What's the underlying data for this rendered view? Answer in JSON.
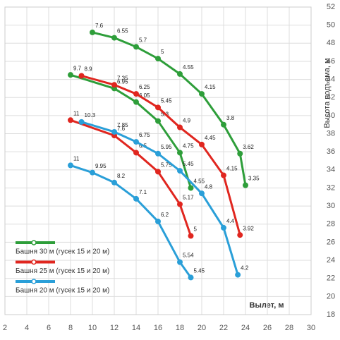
{
  "chart_data": {
    "type": "line",
    "x_label": "Вылет, м",
    "y_label": "Высота подъема, м",
    "xlim": [
      2,
      30
    ],
    "xticks": [
      2,
      4,
      6,
      8,
      10,
      12,
      14,
      16,
      18,
      20,
      22,
      24,
      26,
      28,
      30
    ],
    "ylim": [
      18,
      52
    ],
    "yticks": [
      18,
      20,
      22,
      24,
      26,
      28,
      30,
      32,
      34,
      36,
      38,
      40,
      42,
      44,
      46,
      48,
      50,
      52
    ],
    "grid": true,
    "legend": "lower left",
    "series": [
      {
        "name": "Башня 30 м (гусек 15 и 20 м)",
        "color": "#2e9e3a",
        "curves": [
          {
            "x": [
              10,
              12,
              14,
              16,
              18,
              20,
              22,
              23.5,
              24
            ],
            "y": [
              49.2,
              48.6,
              47.6,
              46.3,
              44.6,
              42.4,
              39,
              35.8,
              32.3
            ],
            "loads": [
              7.6,
              6.55,
              5.7,
              5,
              4.55,
              4.15,
              3.8,
              3.62,
              3.35
            ]
          },
          {
            "x": [
              8,
              12,
              14,
              16,
              18,
              19
            ],
            "y": [
              44.5,
              43.0,
              41.5,
              39.4,
              35.9,
              32
            ],
            "loads": [
              9.7,
              6.95,
              6.05,
              5.3,
              4.75,
              4.55
            ]
          }
        ]
      },
      {
        "name": "Башня 25 м (гусек 15 и 20 м)",
        "color": "#e0261f",
        "curves": [
          {
            "x": [
              9,
              12,
              14,
              16,
              18,
              20,
              22,
              23.5
            ],
            "y": [
              44.4,
              43.4,
              42.4,
              40.9,
              38.7,
              36.8,
              33.4,
              26.8
            ],
            "loads": [
              8.9,
              7.35,
              6.25,
              5.45,
              4.9,
              4.45,
              4.15,
              3.92
            ]
          },
          {
            "x": [
              8,
              12,
              14,
              16,
              18,
              19
            ],
            "y": [
              39.5,
              37.8,
              35.9,
              33.8,
              30.2,
              26.7
            ],
            "loads": [
              11,
              7.6,
              6.5,
              5.75,
              5.17,
              5
            ]
          }
        ]
      },
      {
        "name": "Башня 20 м (гусек 15 и 20 м)",
        "color": "#2a9fd8",
        "curves": [
          {
            "x": [
              9,
              12,
              14,
              16,
              18,
              20,
              22,
              23.3
            ],
            "y": [
              39.3,
              38.2,
              37.1,
              35.8,
              33.9,
              31.4,
              27.6,
              22.4
            ],
            "loads": [
              10.3,
              7.85,
              6.75,
              5.95,
              5.45,
              4.8,
              4.4,
              4.2
            ]
          },
          {
            "x": [
              8,
              10,
              12,
              14,
              16,
              18,
              19
            ],
            "y": [
              34.5,
              33.7,
              32.6,
              30.8,
              28.3,
              23.8,
              22.1
            ],
            "loads": [
              11,
              9.95,
              8.2,
              7.1,
              6.2,
              5.54,
              5.45
            ]
          }
        ]
      }
    ]
  }
}
